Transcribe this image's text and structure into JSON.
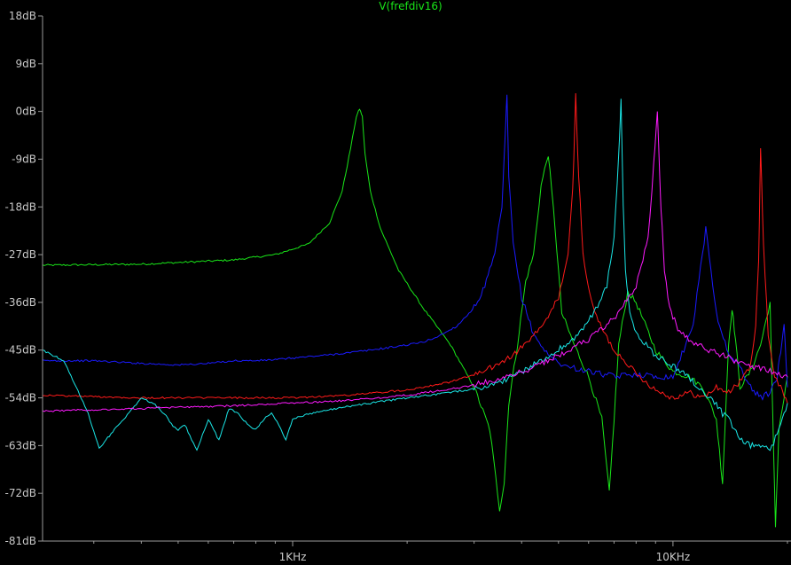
{
  "chart_data": {
    "type": "line",
    "title": "V(frefdiv16)",
    "title_color": "#19e619",
    "x_scale": "log",
    "x_unit": "Hz",
    "x_range": [
      220,
      20000
    ],
    "xticks": [
      {
        "value": 1000,
        "label": "1KHz"
      },
      {
        "value": 10000,
        "label": "10KHz"
      }
    ],
    "ylim": [
      -81,
      18
    ],
    "yticks": [
      {
        "value": 18,
        "label": "18dB"
      },
      {
        "value": 9,
        "label": "9dB"
      },
      {
        "value": 0,
        "label": "0dB"
      },
      {
        "value": -9,
        "label": "-9dB"
      },
      {
        "value": -18,
        "label": "-18dB"
      },
      {
        "value": -27,
        "label": "-27dB"
      },
      {
        "value": -36,
        "label": "-36dB"
      },
      {
        "value": -45,
        "label": "-45dB"
      },
      {
        "value": -54,
        "label": "-54dB"
      },
      {
        "value": -63,
        "label": "-63dB"
      },
      {
        "value": -72,
        "label": "-72dB"
      },
      {
        "value": -81,
        "label": "-81dB"
      }
    ],
    "grid": false,
    "colors": {
      "background": "#000000",
      "axis": "#9a9a9a",
      "labels": "#c8c8c8"
    },
    "series": [
      {
        "color": "#19e619",
        "x": [
          220,
          400,
          700,
          900,
          1100,
          1250,
          1350,
          1420,
          1470,
          1500,
          1525,
          1550,
          1600,
          1700,
          1900,
          2200,
          2600,
          3000,
          3300,
          3500,
          3600,
          3700,
          3900,
          4100,
          4300,
          4500,
          4700,
          4900,
          5100,
          5500,
          6000,
          6500,
          6800,
          7000,
          7200,
          7600,
          8000,
          9000,
          10000,
          11000,
          12000,
          13000,
          13500,
          14000,
          14300,
          14600,
          15000,
          16000,
          17000,
          18000,
          18300,
          18600,
          19000,
          20000
        ],
        "y": [
          -29,
          -28.8,
          -28,
          -27,
          -25,
          -21,
          -15,
          -7,
          -1,
          0.5,
          -1,
          -8,
          -15,
          -22,
          -30,
          -37,
          -44,
          -52,
          -60,
          -75,
          -70,
          -55,
          -44,
          -32,
          -27,
          -14,
          -8,
          -22,
          -38,
          -44,
          -50,
          -58,
          -72,
          -58,
          -44,
          -34,
          -36,
          -45,
          -49,
          -50,
          -52,
          -58,
          -70,
          -44,
          -37,
          -43,
          -52,
          -49,
          -44,
          -36,
          -58,
          -78,
          -60,
          -50
        ]
      },
      {
        "color": "#1a1aff",
        "x": [
          220,
          300,
          400,
          500,
          600,
          700,
          800,
          900,
          1000,
          1200,
          1400,
          1600,
          1800,
          2000,
          2200,
          2400,
          2700,
          3000,
          3200,
          3400,
          3550,
          3620,
          3660,
          3700,
          3800,
          4000,
          4300,
          4700,
          5200,
          6000,
          7000,
          8000,
          9000,
          10000,
          10800,
          11300,
          11700,
          12200,
          13000,
          14000,
          15000,
          16000,
          17000,
          18000,
          18800,
          19200,
          19600,
          20000
        ],
        "y": [
          -47,
          -47,
          -47.5,
          -47.8,
          -47.5,
          -47,
          -47,
          -46.8,
          -46.5,
          -46,
          -45.5,
          -45,
          -44.5,
          -44,
          -43.5,
          -42.5,
          -40.5,
          -37,
          -33,
          -27,
          -18,
          -5,
          3,
          -12,
          -25,
          -35,
          -42,
          -46,
          -48,
          -49,
          -50,
          -49.5,
          -50,
          -50,
          -44,
          -40,
          -32,
          -22,
          -38,
          -46,
          -48,
          -52,
          -54,
          -53,
          -50,
          -45,
          -40,
          -52
        ]
      },
      {
        "color": "#ff1a1a",
        "x": [
          220,
          400,
          700,
          1000,
          1400,
          2000,
          2600,
          3200,
          3800,
          4200,
          4600,
          5000,
          5300,
          5450,
          5550,
          5650,
          5800,
          6100,
          6500,
          7000,
          7500,
          8000,
          8500,
          9000,
          10000,
          11000,
          12000,
          13000,
          14000,
          15000,
          16000,
          16500,
          16800,
          17000,
          17300,
          17800,
          18500,
          19200,
          20000
        ],
        "y": [
          -53.5,
          -54,
          -54,
          -54,
          -53.5,
          -52.5,
          -51,
          -49,
          -46,
          -43,
          -40,
          -35,
          -27,
          -15,
          3,
          -12,
          -27,
          -36,
          -41,
          -45,
          -47,
          -49.5,
          -51,
          -52.5,
          -54,
          -53,
          -54,
          -52,
          -53,
          -51,
          -48,
          -40,
          -28,
          -7,
          -25,
          -42,
          -50,
          -52,
          -55
        ]
      },
      {
        "color": "#1ae6e6",
        "x": [
          220,
          250,
          270,
          290,
          310,
          340,
          380,
          400,
          430,
          460,
          480,
          500,
          520,
          560,
          600,
          640,
          680,
          720,
          760,
          800,
          840,
          880,
          920,
          960,
          1000,
          1100,
          1300,
          1600,
          2000,
          2600,
          3200,
          3800,
          4500,
          5500,
          6200,
          6700,
          7000,
          7200,
          7300,
          7400,
          7500,
          7700,
          8000,
          8500,
          9000,
          10000,
          11000,
          12000,
          13000,
          13500,
          14000,
          15000,
          16000,
          17000,
          18000,
          19000,
          20000
        ],
        "y": [
          -45,
          -47,
          -52,
          -57,
          -63.5,
          -60,
          -56,
          -54,
          -55,
          -57,
          -59,
          -60,
          -59,
          -64,
          -58,
          -62,
          -56,
          -57,
          -59,
          -60,
          -58,
          -57,
          -59,
          -62,
          -58,
          -57,
          -56,
          -55,
          -54,
          -53,
          -52,
          -50,
          -47,
          -43,
          -38,
          -33,
          -24,
          -8,
          2,
          -18,
          -30,
          -38,
          -42,
          -44,
          -46,
          -48,
          -50,
          -53,
          -55,
          -57,
          -58,
          -62,
          -63,
          -63,
          -64,
          -60,
          -55
        ]
      },
      {
        "color": "#ff1aff",
        "x": [
          220,
          400,
          700,
          1000,
          1400,
          2000,
          2800,
          3500,
          4200,
          5000,
          6000,
          7000,
          8000,
          8600,
          8900,
          9100,
          9300,
          9500,
          9800,
          10300,
          11000,
          12000,
          13000,
          14000,
          15000,
          16000,
          17000,
          18000,
          19000,
          20000
        ],
        "y": [
          -56.5,
          -56,
          -55.5,
          -55,
          -54.5,
          -53.5,
          -52,
          -50.5,
          -48.5,
          -46,
          -43,
          -39,
          -33,
          -24,
          -10,
          0,
          -18,
          -30,
          -37,
          -41,
          -43,
          -44.5,
          -45.5,
          -46.5,
          -47.5,
          -48,
          -48.5,
          -49,
          -49.5,
          -50
        ]
      }
    ]
  }
}
